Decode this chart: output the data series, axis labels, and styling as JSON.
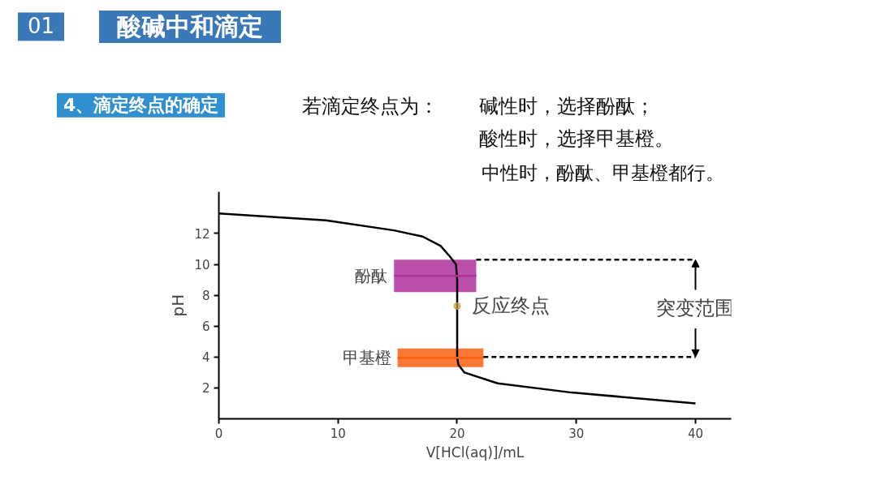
{
  "chart_data": {
    "type": "line",
    "title": "酸碱中和滴定",
    "subtitle": "4、滴定终点的确定",
    "xlabel": "V[HCl(aq)]/mL",
    "ylabel": "pH",
    "xlim": [
      0,
      43
    ],
    "ylim": [
      0,
      14.7
    ],
    "xticks": [
      0,
      10,
      20,
      30,
      40
    ],
    "yticks": [
      2,
      4,
      6,
      8,
      10,
      12
    ],
    "grid": false,
    "legend": false,
    "series": [
      {
        "color": "#000000",
        "x": [
          0,
          9,
          14.7,
          17.1,
          18.6,
          19.4,
          19.9,
          20,
          20,
          20.1,
          20.6,
          23.4,
          29.6,
          40
        ],
        "values": [
          13.3,
          12.85,
          12.2,
          11.8,
          11.2,
          10.5,
          10.0,
          9,
          4,
          3.5,
          3.0,
          2.3,
          1.7,
          1.0
        ]
      },
      {
        "type": "line",
        "name": "酚酞",
        "color": "#b0309a",
        "x": [
          14.7,
          21.6
        ],
        "values": [
          9.25,
          9.25
        ],
        "lower": [
          8.2,
          8.2
        ],
        "upper": [
          10.3,
          10.3
        ]
      },
      {
        "type": "line",
        "name": "甲基橙",
        "color": "#f76010",
        "x": [
          15,
          22.2
        ],
        "values": [
          3.95,
          3.95
        ],
        "lower": [
          3.35,
          3.35
        ],
        "upper": [
          4.55,
          4.55
        ]
      },
      {
        "type": "line",
        "line_style": "dashed",
        "color": "#000000",
        "x": [
          21.6,
          40
        ],
        "values": [
          10.3,
          10.3
        ]
      },
      {
        "type": "line",
        "line_style": "dashed",
        "color": "#000000",
        "x": [
          22.2,
          40
        ],
        "values": [
          4.0,
          4.0
        ]
      },
      {
        "type": "scatter",
        "marker": "circle",
        "color": "#c8a040",
        "x": [
          20
        ],
        "values": [
          7.3
        ]
      }
    ],
    "annotations": [
      "01",
      "若滴定终点为：",
      "碱性时，选择酚酞；",
      "酸性时，选择甲基橙。",
      "中性时，酚酞、甲基橙都行。",
      {
        "text": "反应终点",
        "x": 20,
        "y": 7.3
      },
      {
        "text": "突变范围",
        "x": 40,
        "y": 10.3
      }
    ]
  }
}
